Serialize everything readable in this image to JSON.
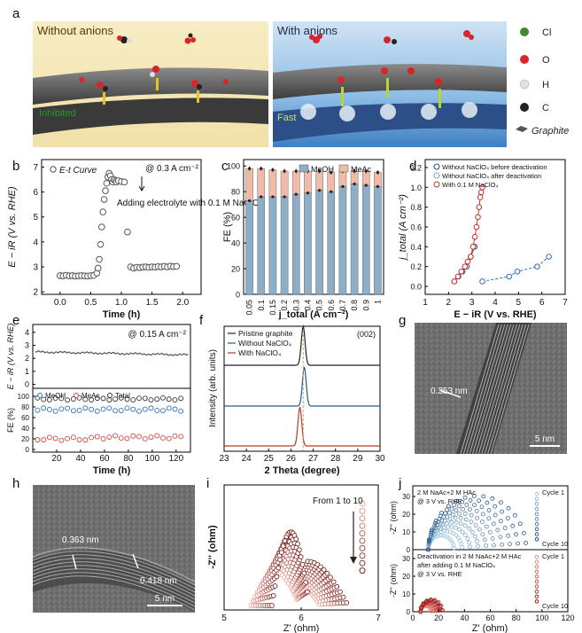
{
  "panel_letters": {
    "a": "a",
    "b": "b",
    "c": "c",
    "d": "d",
    "e": "e",
    "f": "f",
    "g": "g",
    "h": "h",
    "i": "i",
    "j": "j"
  },
  "panel_a": {
    "left_title": "Without anions",
    "right_title": "With anions",
    "left_caption": "Inhibited",
    "right_caption": "Fast",
    "legend": [
      {
        "label": "Cl",
        "color": "#3f8a2e"
      },
      {
        "label": "O",
        "color": "#d8242a"
      },
      {
        "label": "H",
        "color": "#dcdcdc"
      },
      {
        "label": "C",
        "color": "#222222"
      },
      {
        "label": "Graphite",
        "color": "#555555"
      }
    ]
  },
  "chart_data": [
    {
      "id": "b",
      "type": "scatter",
      "xlabel": "Time (h)",
      "ylabel": "E − iR (V vs. RHE)",
      "xlim": [
        -0.3,
        2.3
      ],
      "ylim": [
        1.9,
        7.3
      ],
      "xticks": [
        0.0,
        0.5,
        1.0,
        1.5,
        2.0
      ],
      "yticks": [
        2,
        3,
        4,
        5,
        6,
        7
      ],
      "legend": "E-t Curve",
      "condition": "@ 0.3 A cm⁻²",
      "annotation": "Adding electrolyte with 0.1 M NaClO₄",
      "x": [
        0.0,
        0.05,
        0.1,
        0.15,
        0.2,
        0.25,
        0.3,
        0.35,
        0.4,
        0.45,
        0.5,
        0.55,
        0.6,
        0.62,
        0.64,
        0.66,
        0.68,
        0.7,
        0.72,
        0.74,
        0.76,
        0.78,
        0.8,
        0.82,
        0.84,
        0.86,
        0.88,
        0.9,
        0.92,
        0.95,
        1.0,
        1.05,
        1.1,
        1.15,
        1.2,
        1.25,
        1.3,
        1.35,
        1.4,
        1.45,
        1.5,
        1.55,
        1.6,
        1.65,
        1.7,
        1.75,
        1.8,
        1.85,
        1.9
      ],
      "y": [
        2.65,
        2.64,
        2.66,
        2.64,
        2.65,
        2.63,
        2.64,
        2.65,
        2.64,
        2.63,
        2.65,
        2.66,
        2.75,
        2.95,
        3.3,
        3.9,
        4.6,
        5.2,
        5.7,
        6.05,
        6.35,
        6.6,
        6.75,
        6.65,
        6.5,
        6.4,
        6.5,
        6.45,
        6.4,
        6.45,
        6.42,
        6.4,
        4.4,
        3.0,
        2.95,
        2.98,
        2.97,
        2.99,
        3.0,
        2.98,
        3.0,
        2.99,
        3.01,
        3.0,
        3.02,
        3.0,
        3.03,
        3.01,
        3.02
      ]
    },
    {
      "id": "c",
      "type": "bar",
      "xlabel": "j_total (A cm⁻²)",
      "ylabel": "FE (%)",
      "ylim": [
        0,
        105
      ],
      "yticks": [
        0,
        20,
        40,
        60,
        80,
        100
      ],
      "categories": [
        "0.05",
        "0.1",
        "0.15",
        "0.2",
        "0.3",
        "0.4",
        "0.5",
        "0.6",
        "0.7",
        "0.8",
        "0.9",
        "1"
      ],
      "series": [
        {
          "name": "MeOH",
          "values": [
            73,
            76,
            76,
            76,
            78,
            79,
            81,
            80,
            84,
            86,
            85,
            84
          ],
          "color": "#8eaec7"
        },
        {
          "name": "MeAc",
          "values": [
            25,
            22,
            21,
            20,
            18,
            17,
            15,
            15,
            12,
            10,
            11,
            11
          ],
          "color": "#f0bba8"
        }
      ]
    },
    {
      "id": "d",
      "type": "line",
      "xlabel": "E − iR (V vs. RHE)",
      "ylabel": "j_total (A cm⁻²)",
      "xlim": [
        1,
        7
      ],
      "ylim": [
        -0.08,
        1.28
      ],
      "xticks": [
        1,
        2,
        3,
        4,
        5,
        6,
        7
      ],
      "yticks": [
        0.0,
        0.2,
        0.4,
        0.6,
        0.8,
        1.0,
        1.2
      ],
      "series": [
        {
          "name": "Without NaClO₄ before deactivation",
          "x": [
            2.25,
            2.42,
            2.6,
            2.78,
            2.95,
            3.12
          ],
          "y": [
            0.05,
            0.1,
            0.15,
            0.2,
            0.3,
            0.4
          ],
          "color": "#1f4f8a"
        },
        {
          "name": "Without NaClO₄ after deactivation",
          "x": [
            3.45,
            4.6,
            4.95,
            5.8,
            6.3
          ],
          "y": [
            0.05,
            0.1,
            0.15,
            0.2,
            0.3
          ],
          "color": "#2d6fb4"
        },
        {
          "name": "With 0.1 M NaClO₄",
          "x": [
            2.25,
            2.4,
            2.55,
            2.7,
            2.82,
            2.95,
            3.05,
            3.13,
            3.2,
            3.26,
            3.31,
            3.36,
            3.4,
            3.45
          ],
          "y": [
            0.05,
            0.1,
            0.15,
            0.2,
            0.25,
            0.3,
            0.4,
            0.5,
            0.6,
            0.7,
            0.8,
            0.9,
            0.95,
            1.0
          ],
          "color": "#c9302c"
        }
      ]
    },
    {
      "id": "e",
      "type": "scatter",
      "xlabel": "Time (h)",
      "ylabel_top": "E − iR (V vs. RHE)",
      "ylabel_bottom": "FE (%)",
      "xlim": [
        0,
        132
      ],
      "xticks": [
        20,
        40,
        60,
        80,
        100,
        120
      ],
      "condition": "@ 0.15 A cm⁻²",
      "top_yticks": [
        0,
        1,
        2,
        3,
        4
      ],
      "bottom_yticks": [
        0,
        20,
        40,
        60,
        80,
        100
      ],
      "series": [
        {
          "name": "MeOH",
          "level": 75,
          "color": "#2e73b5"
        },
        {
          "name": "MeAc",
          "level": 20,
          "color": "#d2453b"
        },
        {
          "name": "Total",
          "level": 95,
          "color": "#333333"
        }
      ]
    },
    {
      "id": "f",
      "type": "line",
      "xlabel": "2 Theta (degree)",
      "ylabel": "Intensity (arb. units)",
      "xlim": [
        23,
        30
      ],
      "xticks": [
        23,
        24,
        25,
        26,
        27,
        28,
        29,
        30
      ],
      "annotation": "(002)",
      "series": [
        {
          "name": "Pristine graphite",
          "peak": 26.55,
          "color": "#222222"
        },
        {
          "name": "Without NaClO₄",
          "peak": 26.6,
          "color": "#1f5f8f"
        },
        {
          "name": "With NaClO₄",
          "peak": 26.4,
          "color": "#b23a2e"
        }
      ]
    },
    {
      "id": "i",
      "type": "scatter",
      "xlabel": "Z' (ohm)",
      "ylabel": "-Z'' (ohm)",
      "xlim": [
        5,
        7
      ],
      "xticks": [
        5,
        6,
        7
      ],
      "annotation": "From 1 to 10"
    },
    {
      "id": "j",
      "type": "scatter",
      "xlabel": "Z' (ohm)",
      "ylabel": "-Z'' (ohm)",
      "xlim": [
        0,
        120
      ],
      "xticks": [
        0,
        20,
        40,
        60,
        80,
        100,
        120
      ],
      "top_yticks": [
        0,
        10,
        20,
        30
      ],
      "bottom_yticks": [
        0,
        10,
        20,
        30
      ],
      "top_label": "2 M NaAc+2 M HAc\n@ 3 V vs. RHE",
      "bottom_label": "Deactivation in 2 M NaAc+2 M HAc\nafter adding 0.1 M NaClO₄\n@ 3 V vs. RHE",
      "cycle_start": "Cycle 1",
      "cycle_end": "Cycle 10"
    }
  ],
  "panel_g": {
    "scale": "5 nm",
    "spacing": "0.353 nm"
  },
  "panel_h": {
    "scale": "5 nm",
    "spacing_a": "0.363 nm",
    "spacing_b": "0.418 nm"
  }
}
